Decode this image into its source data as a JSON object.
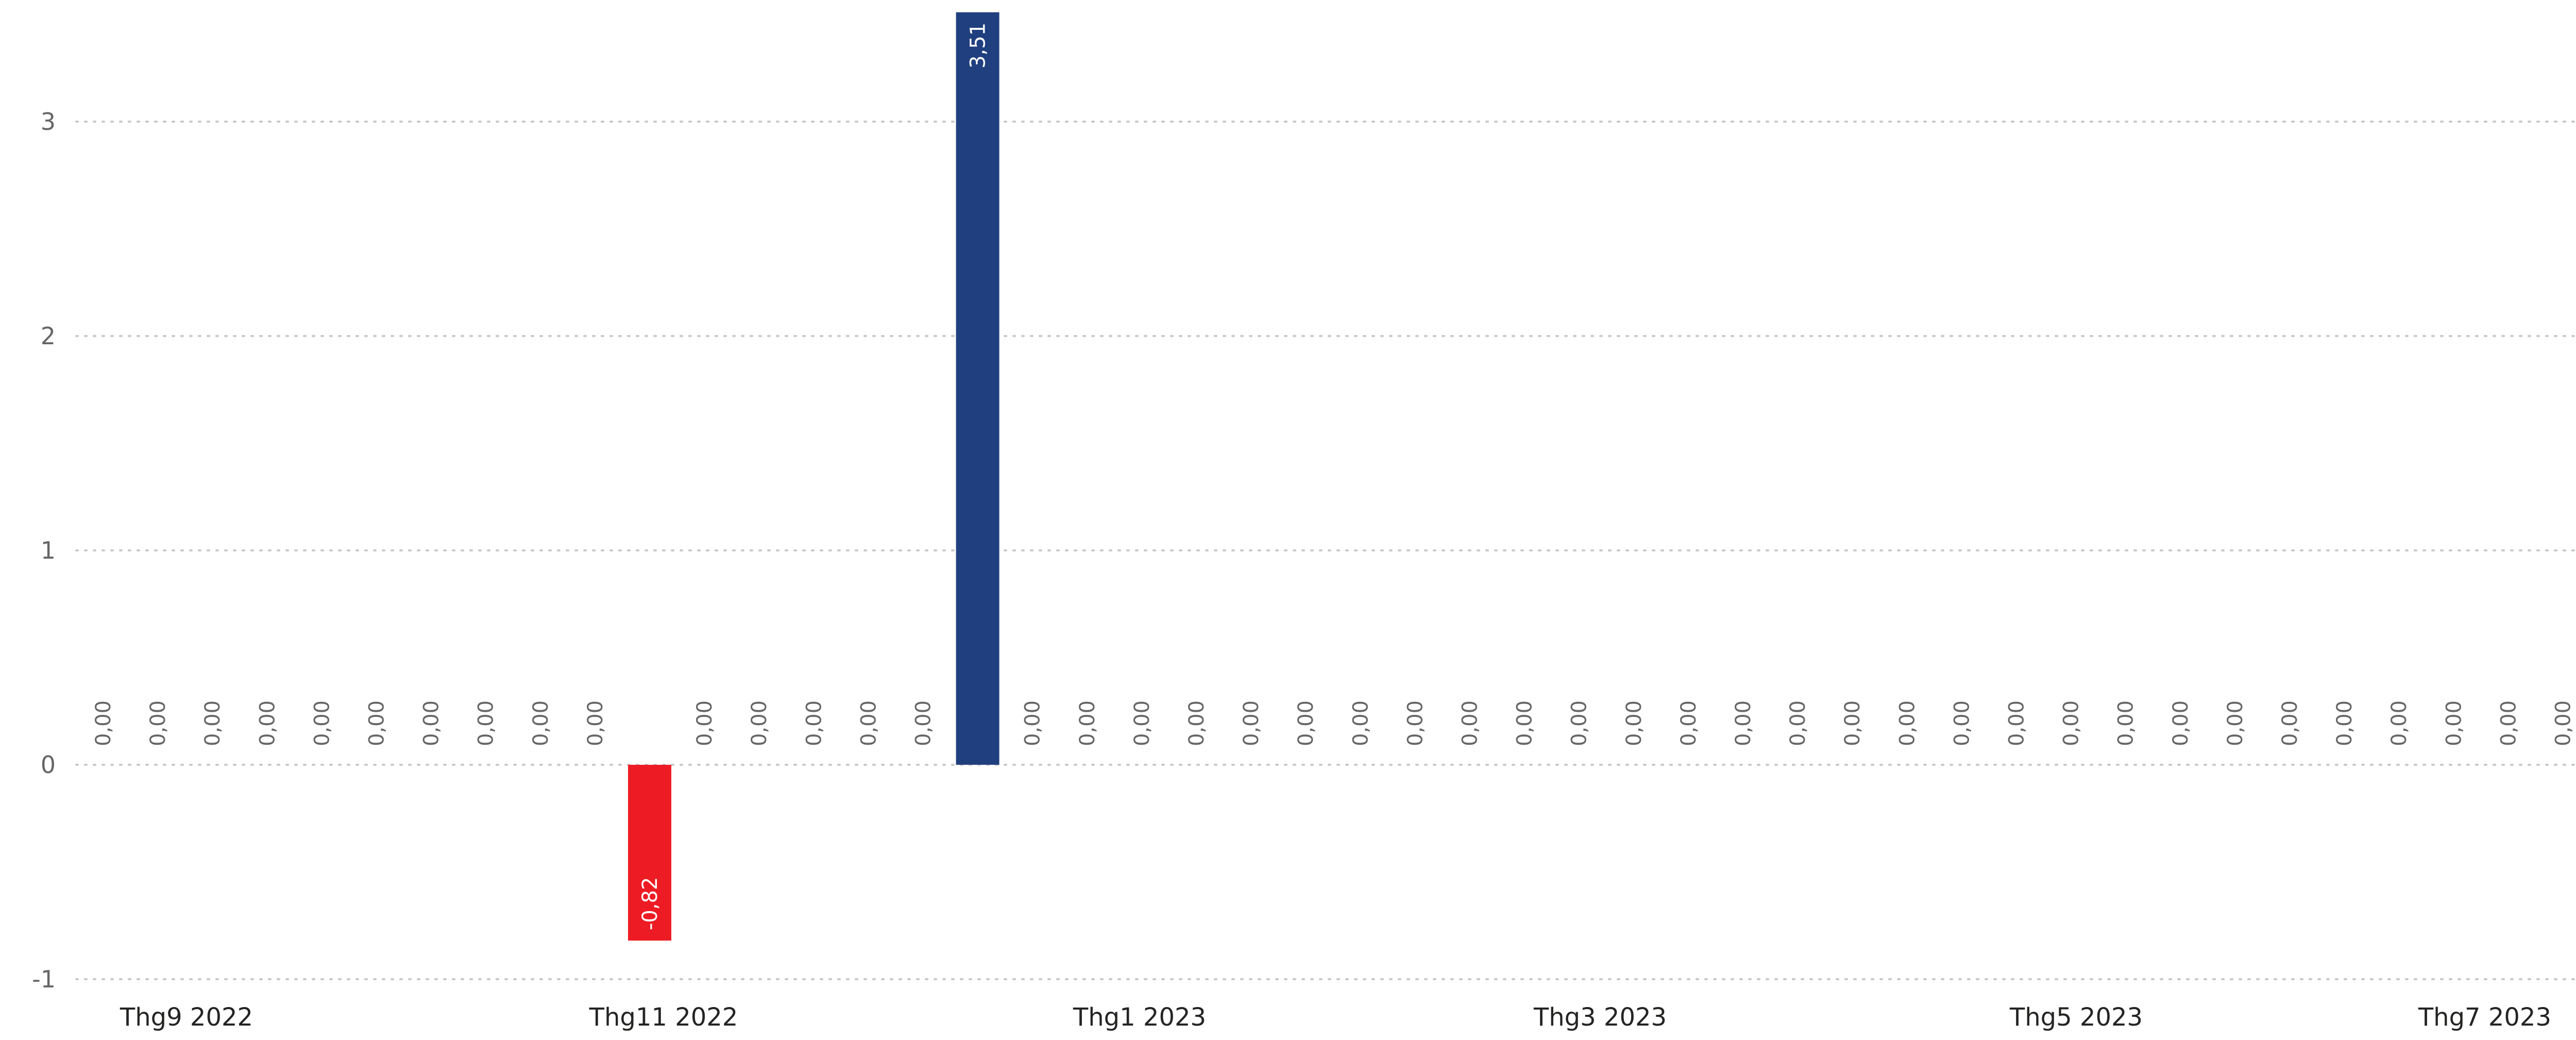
{
  "chart_data": {
    "type": "bar",
    "title": "",
    "xlabel": "",
    "ylabel": "",
    "ylim": [
      -1,
      3.5
    ],
    "yticks": [
      "-1",
      "0",
      "1",
      "2",
      "3"
    ],
    "x_tick_labels": [
      "Thg9 2022",
      "Thg11 2022",
      "Thg1 2023",
      "Thg3 2023",
      "Thg5 2023",
      "Thg7 2023"
    ],
    "grid": true,
    "colors": {
      "positive": "#203F7F",
      "negative": "#ED1C24",
      "label": "#666666",
      "label_inside": "#ffffff",
      "axis_text": "#252423",
      "grid": "#c8c8c8"
    },
    "values": [
      0,
      0,
      0,
      0,
      0,
      0,
      0,
      0,
      0,
      0,
      -0.82,
      0,
      0,
      0,
      0,
      0,
      3.51,
      0,
      0,
      0,
      0,
      0,
      0,
      0,
      0,
      0,
      0,
      0,
      0,
      0,
      0,
      0,
      0,
      0,
      0,
      0,
      0,
      0,
      0,
      0,
      0,
      0,
      0,
      0,
      0,
      0
    ],
    "data_labels": [
      "0,00",
      "0,00",
      "0,00",
      "0,00",
      "0,00",
      "0,00",
      "0,00",
      "0,00",
      "0,00",
      "0,00",
      "-0,82",
      "0,00",
      "0,00",
      "0,00",
      "0,00",
      "0,00",
      "3,51",
      "0,00",
      "0,00",
      "0,00",
      "0,00",
      "0,00",
      "0,00",
      "0,00",
      "0,00",
      "0,00",
      "0,00",
      "0,00",
      "0,00",
      "0,00",
      "0,00",
      "0,00",
      "0,00",
      "0,00",
      "0,00",
      "0,00",
      "0,00",
      "0,00",
      "0,00",
      "0,00",
      "0,00",
      "0,00",
      "0,00",
      "0,00",
      "0,00",
      "0,00"
    ]
  }
}
